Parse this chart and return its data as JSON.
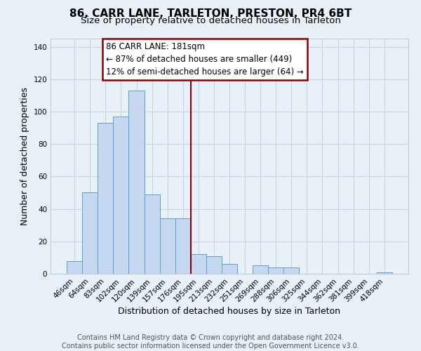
{
  "title": "86, CARR LANE, TARLETON, PRESTON, PR4 6BT",
  "subtitle": "Size of property relative to detached houses in Tarleton",
  "xlabel": "Distribution of detached houses by size in Tarleton",
  "ylabel": "Number of detached properties",
  "bar_labels": [
    "46sqm",
    "64sqm",
    "83sqm",
    "102sqm",
    "120sqm",
    "139sqm",
    "157sqm",
    "176sqm",
    "195sqm",
    "213sqm",
    "232sqm",
    "251sqm",
    "269sqm",
    "288sqm",
    "306sqm",
    "325sqm",
    "344sqm",
    "362sqm",
    "381sqm",
    "399sqm",
    "418sqm"
  ],
  "bar_values": [
    8,
    50,
    93,
    97,
    113,
    49,
    34,
    34,
    12,
    11,
    6,
    0,
    5,
    4,
    4,
    0,
    0,
    0,
    0,
    0,
    1
  ],
  "bar_color": "#c5d8f0",
  "bar_edgecolor": "#5a9fd4",
  "vline_x": 7.5,
  "vline_color": "#8b0000",
  "annotation_box_text": "86 CARR LANE: 181sqm\n← 87% of detached houses are smaller (449)\n12% of semi-detached houses are larger (64) →",
  "annotation_box_edgecolor": "#8b0000",
  "ylim": [
    0,
    145
  ],
  "yticks": [
    0,
    20,
    40,
    60,
    80,
    100,
    120,
    140
  ],
  "footer_line1": "Contains HM Land Registry data © Crown copyright and database right 2024.",
  "footer_line2": "Contains public sector information licensed under the Open Government Licence v3.0.",
  "background_color": "#e8f0f8",
  "plot_bg_color": "#e8f0f8",
  "grid_color": "#c8d4e4",
  "title_fontsize": 11,
  "subtitle_fontsize": 9.5,
  "axis_label_fontsize": 9,
  "tick_fontsize": 7.5,
  "footer_fontsize": 7
}
